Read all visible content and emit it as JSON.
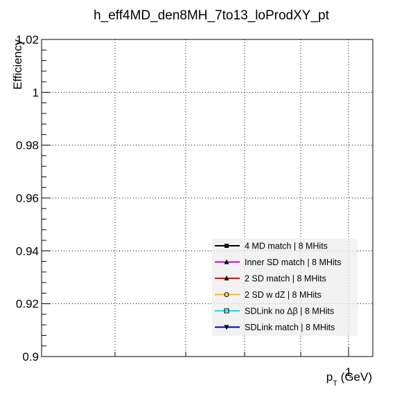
{
  "chart_data": {
    "type": "line",
    "title": "h_eff4MD_den8MH_7to13_loProdXY_pt",
    "xlabel_main": "p",
    "xlabel_sub": "T",
    "xlabel_unit": " (GeV)",
    "ylabel": "Efficiency",
    "xscale": "log",
    "x_tick_label": "1",
    "ylim": [
      0.9,
      1.02
    ],
    "yticks": [
      0.9,
      0.92,
      0.94,
      0.96,
      0.98,
      1.0,
      1.02
    ],
    "ytick_labels": [
      "0.9",
      "0.92",
      "0.94",
      "0.96",
      "0.98",
      "1",
      "1.02"
    ],
    "grid": true,
    "legend_position": "bottom-right",
    "series": [
      {
        "name": "4 MD match | 8 MHits",
        "color": "#000000",
        "marker": "square-filled",
        "values": []
      },
      {
        "name": "Inner SD match | 8 MHits",
        "color": "#cc00cc",
        "marker": "triangle-up",
        "values": []
      },
      {
        "name": "2 SD match | 8 MHits",
        "color": "#ee0000",
        "marker": "triangle-up",
        "values": []
      },
      {
        "name": "2 SD w dZ | 8 MHits",
        "color": "#ffbb00",
        "marker": "circle-open",
        "values": []
      },
      {
        "name": "SDLink no Δβ | 8 MHits",
        "color": "#00e5e5",
        "marker": "square-open",
        "values": []
      },
      {
        "name": "SDLink match | 8 MHits",
        "color": "#0000aa",
        "marker": "triangle-down",
        "values": []
      }
    ]
  }
}
